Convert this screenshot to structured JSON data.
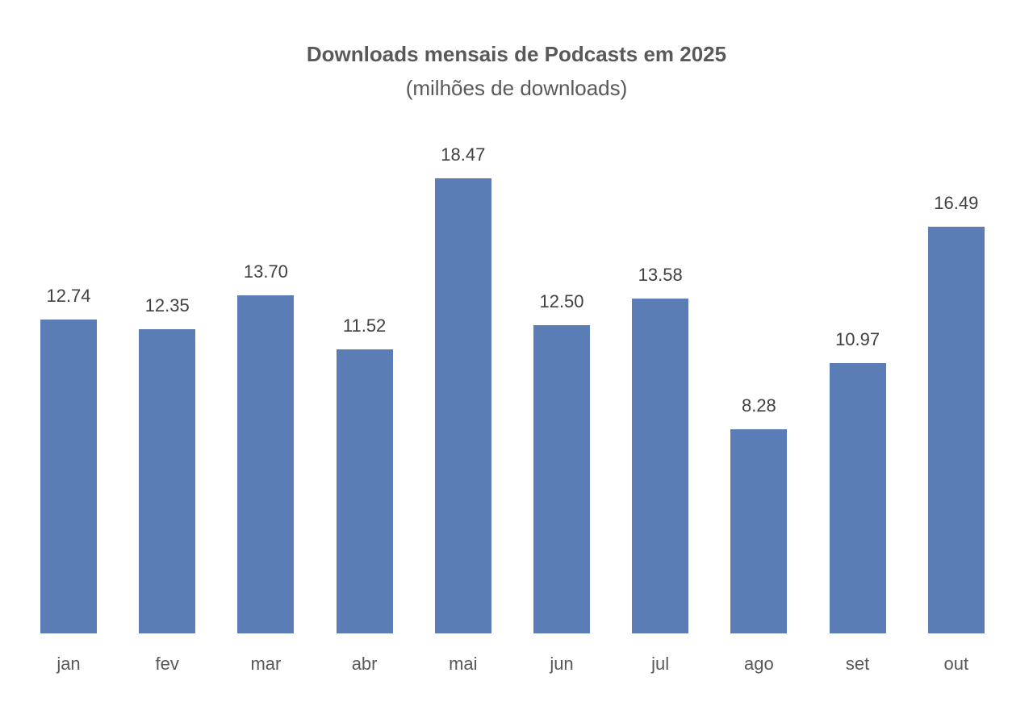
{
  "chart_data": {
    "type": "bar",
    "title": "Downloads mensais de Podcasts em 2025",
    "subtitle": "(milhões de downloads)",
    "categories": [
      "jan",
      "fev",
      "mar",
      "abr",
      "mai",
      "jun",
      "jul",
      "ago",
      "set",
      "out"
    ],
    "values": [
      12.74,
      12.35,
      13.7,
      11.52,
      18.47,
      12.5,
      13.58,
      8.28,
      10.97,
      16.49
    ],
    "value_labels": [
      "12.74",
      "12.35",
      "13.70",
      "11.52",
      "18.47",
      "12.50",
      "13.58",
      "8.28",
      "10.97",
      "16.49"
    ],
    "xlabel": "",
    "ylabel": "",
    "ylim": [
      0,
      20
    ],
    "grid": false,
    "legend": null,
    "bar_color": "#5B7DB5"
  }
}
